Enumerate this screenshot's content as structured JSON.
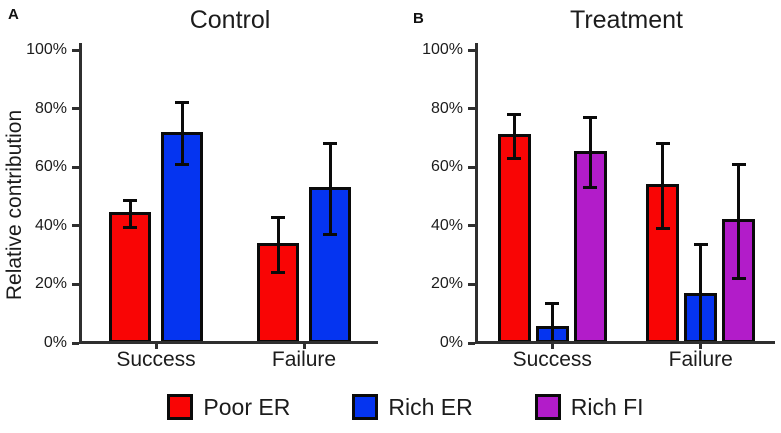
{
  "figure_title": "",
  "ylabel": "Relative contribution",
  "colors": {
    "poor_er": "#f90505",
    "rich_er": "#0534f0",
    "rich_fi": "#b21cc9",
    "axis": "#2f2f2f"
  },
  "legend": {
    "items": [
      {
        "label": "Poor ER",
        "color": "#f90505"
      },
      {
        "label": "Rich ER",
        "color": "#0534f0"
      },
      {
        "label": "Rich FI",
        "color": "#b21cc9"
      }
    ]
  },
  "chart_data": [
    {
      "type": "bar",
      "panel": "A",
      "title": "Control",
      "ylabel": "Relative contribution",
      "categories": [
        "Success",
        "Failure"
      ],
      "series": [
        {
          "name": "Poor ER",
          "color": "#f90505",
          "values": [
            44,
            33.5
          ],
          "errors": [
            5,
            10
          ]
        },
        {
          "name": "Rich ER",
          "color": "#0534f0",
          "values": [
            71.5,
            52.5
          ],
          "errors": [
            11,
            16
          ]
        }
      ],
      "ylim": [
        0,
        100
      ],
      "yticks": [
        0,
        20,
        40,
        60,
        80,
        100
      ],
      "ytick_labels": [
        "0%",
        "20%",
        "40%",
        "60%",
        "80%",
        "100%"
      ],
      "error_bars": "symmetric",
      "grid": "off",
      "legend_position": "shared-bottom"
    },
    {
      "type": "bar",
      "panel": "B",
      "title": "Treatment",
      "ylabel": "",
      "categories": [
        "Success",
        "Failure"
      ],
      "series": [
        {
          "name": "Poor ER",
          "color": "#f90505",
          "values": [
            70.5,
            53.5
          ],
          "errors": [
            8,
            15
          ]
        },
        {
          "name": "Rich ER",
          "color": "#0534f0",
          "values": [
            5,
            16.5
          ],
          "errors": [
            9,
            17.5
          ]
        },
        {
          "name": "Rich FI",
          "color": "#b21cc9",
          "values": [
            65,
            41.5
          ],
          "errors": [
            12.5,
            20
          ]
        }
      ],
      "ylim": [
        0,
        100
      ],
      "yticks": [
        0,
        20,
        40,
        60,
        80,
        100
      ],
      "ytick_labels": [
        "0%",
        "20%",
        "40%",
        "60%",
        "80%",
        "100%"
      ],
      "error_bars": "symmetric",
      "grid": "off",
      "legend_position": "shared-bottom"
    }
  ]
}
